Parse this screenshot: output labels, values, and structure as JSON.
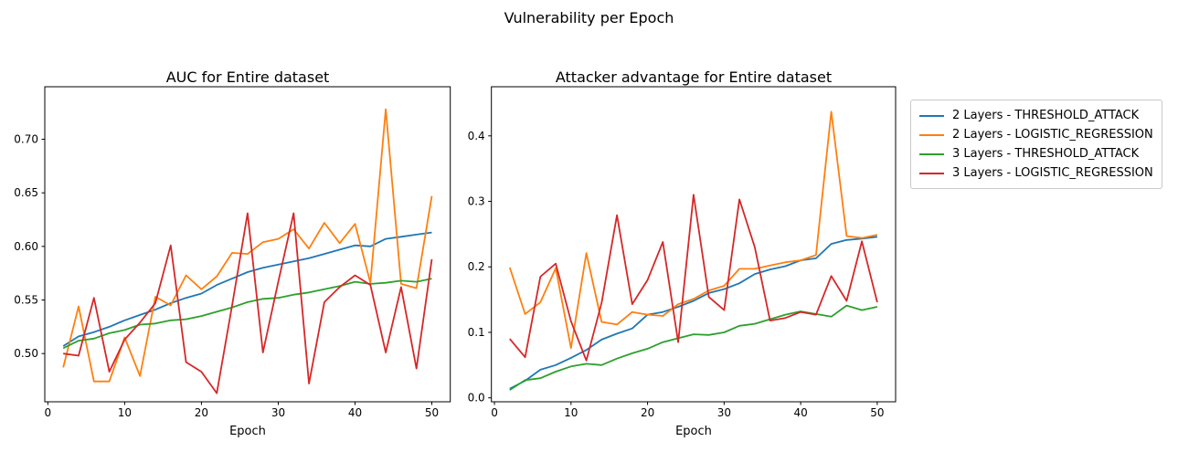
{
  "figure": {
    "suptitle": "Vulnerability per Epoch",
    "background": "#ffffff"
  },
  "legend": {
    "position": "outside upper right",
    "items": [
      {
        "label": "2 Layers - THRESHOLD_ATTACK",
        "color": "#1f77b4"
      },
      {
        "label": "2 Layers - LOGISTIC_REGRESSION",
        "color": "#ff7f0e"
      },
      {
        "label": "3 Layers - THRESHOLD_ATTACK",
        "color": "#2ca02c"
      },
      {
        "label": "3 Layers - LOGISTIC_REGRESSION",
        "color": "#d62728"
      }
    ]
  },
  "chart_data": [
    {
      "id": "auc",
      "type": "line",
      "title": "AUC for Entire dataset",
      "xlabel": "Epoch",
      "grid": false,
      "xlim": [
        -0.4,
        52.4
      ],
      "ylim": [
        0.455,
        0.749
      ],
      "xticks": [
        0,
        10,
        20,
        30,
        40,
        50
      ],
      "xticklabels": [
        "0",
        "10",
        "20",
        "30",
        "40",
        "50"
      ],
      "yticks": [
        0.5,
        0.55,
        0.6,
        0.65,
        0.7
      ],
      "yticklabels": [
        "0.50",
        "0.55",
        "0.60",
        "0.65",
        "0.70"
      ],
      "x": [
        2,
        4,
        6,
        8,
        10,
        12,
        14,
        16,
        18,
        20,
        22,
        24,
        26,
        28,
        30,
        32,
        34,
        36,
        38,
        40,
        42,
        44,
        46,
        48,
        50
      ],
      "series": [
        {
          "name": "2 Layers - THRESHOLD_ATTACK",
          "color": "#1f77b4",
          "values": [
            0.507,
            0.516,
            0.52,
            0.525,
            0.531,
            0.536,
            0.541,
            0.547,
            0.552,
            0.556,
            0.564,
            0.57,
            0.576,
            0.58,
            0.583,
            0.586,
            0.589,
            0.593,
            0.597,
            0.601,
            0.6,
            0.607,
            0.609,
            0.611,
            0.613
          ]
        },
        {
          "name": "2 Layers - LOGISTIC_REGRESSION",
          "color": "#ff7f0e",
          "values": [
            0.487,
            0.544,
            0.474,
            0.474,
            0.515,
            0.479,
            0.553,
            0.545,
            0.573,
            0.56,
            0.572,
            0.594,
            0.593,
            0.604,
            0.607,
            0.616,
            0.598,
            0.622,
            0.603,
            0.621,
            0.566,
            0.728,
            0.565,
            0.561,
            0.647
          ]
        },
        {
          "name": "3 Layers - THRESHOLD_ATTACK",
          "color": "#2ca02c",
          "values": [
            0.505,
            0.512,
            0.514,
            0.519,
            0.522,
            0.527,
            0.528,
            0.531,
            0.532,
            0.535,
            0.539,
            0.543,
            0.548,
            0.551,
            0.552,
            0.555,
            0.557,
            0.56,
            0.563,
            0.567,
            0.565,
            0.566,
            0.568,
            0.567,
            0.57
          ]
        },
        {
          "name": "3 Layers - LOGISTIC_REGRESSION",
          "color": "#d62728",
          "values": [
            0.5,
            0.498,
            0.552,
            0.483,
            0.513,
            0.529,
            0.547,
            0.601,
            0.492,
            0.483,
            0.463,
            0.545,
            0.631,
            0.501,
            0.567,
            0.631,
            0.472,
            0.548,
            0.562,
            0.573,
            0.564,
            0.501,
            0.562,
            0.486,
            0.588
          ]
        }
      ]
    },
    {
      "id": "advantage",
      "type": "line",
      "title": "Attacker advantage for Entire dataset",
      "xlabel": "Epoch",
      "grid": false,
      "xlim": [
        -0.4,
        52.4
      ],
      "ylim": [
        -0.006,
        0.475
      ],
      "xticks": [
        0,
        10,
        20,
        30,
        40,
        50
      ],
      "xticklabels": [
        "0",
        "10",
        "20",
        "30",
        "40",
        "50"
      ],
      "yticks": [
        0.0,
        0.1,
        0.2,
        0.3,
        0.4
      ],
      "yticklabels": [
        "0.0",
        "0.1",
        "0.2",
        "0.3",
        "0.4"
      ],
      "x": [
        2,
        4,
        6,
        8,
        10,
        12,
        14,
        16,
        18,
        20,
        22,
        24,
        26,
        28,
        30,
        32,
        34,
        36,
        38,
        40,
        42,
        44,
        46,
        48,
        50
      ],
      "series": [
        {
          "name": "2 Layers - THRESHOLD_ATTACK",
          "color": "#1f77b4",
          "values": [
            0.014,
            0.026,
            0.043,
            0.05,
            0.061,
            0.073,
            0.089,
            0.098,
            0.106,
            0.127,
            0.131,
            0.139,
            0.148,
            0.16,
            0.166,
            0.175,
            0.189,
            0.196,
            0.201,
            0.21,
            0.213,
            0.235,
            0.241,
            0.243,
            0.246
          ]
        },
        {
          "name": "2 Layers - LOGISTIC_REGRESSION",
          "color": "#ff7f0e",
          "values": [
            0.199,
            0.128,
            0.146,
            0.198,
            0.076,
            0.221,
            0.116,
            0.112,
            0.131,
            0.127,
            0.125,
            0.143,
            0.151,
            0.164,
            0.171,
            0.197,
            0.197,
            0.202,
            0.207,
            0.21,
            0.218,
            0.437,
            0.247,
            0.244,
            0.249
          ]
        },
        {
          "name": "3 Layers - THRESHOLD_ATTACK",
          "color": "#2ca02c",
          "values": [
            0.012,
            0.027,
            0.03,
            0.04,
            0.048,
            0.052,
            0.05,
            0.06,
            0.068,
            0.075,
            0.085,
            0.091,
            0.097,
            0.096,
            0.1,
            0.11,
            0.113,
            0.12,
            0.127,
            0.132,
            0.128,
            0.124,
            0.141,
            0.134,
            0.139
          ]
        },
        {
          "name": "3 Layers - LOGISTIC_REGRESSION",
          "color": "#d62728",
          "values": [
            0.09,
            0.062,
            0.185,
            0.205,
            0.117,
            0.057,
            0.145,
            0.279,
            0.143,
            0.18,
            0.238,
            0.085,
            0.31,
            0.154,
            0.134,
            0.303,
            0.23,
            0.118,
            0.122,
            0.131,
            0.127,
            0.186,
            0.148,
            0.239,
            0.146
          ]
        }
      ]
    }
  ]
}
